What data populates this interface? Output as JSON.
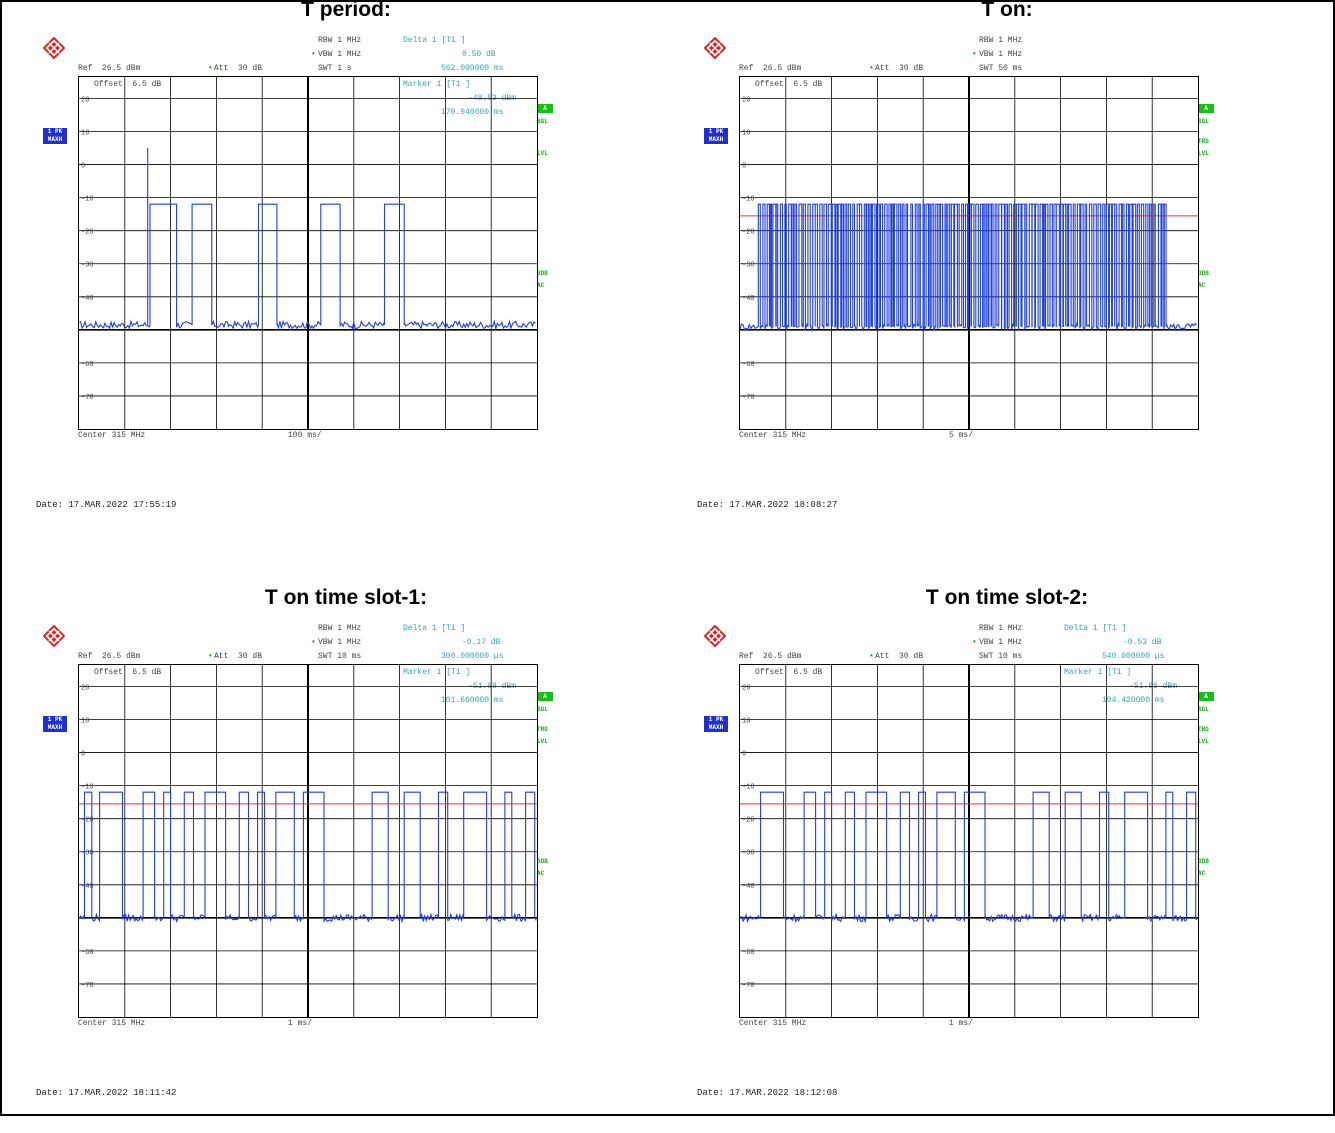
{
  "chart_data": [
    {
      "type": "line",
      "title": "T period:",
      "header": {
        "rbw": "RBW 1 MHz",
        "vbw": "VBW 1 MHz",
        "swt": "SWT 1 s",
        "ref": "Ref  26.5 dBm",
        "att": "Att  30 dB",
        "offset": "Offset  6.5 dB",
        "delta_label": "Delta 1 [T1 ]",
        "delta_db": "0.50 dB",
        "delta_time": "562.000000 ms",
        "marker_label": "Marker 1 [T1 ]",
        "marker_level": "-48.53 dBm",
        "marker_time": "170.940000 ms"
      },
      "side": {
        "tag1": "1 PK",
        "tag2": "MAXH",
        "sgl": "SGL",
        "trg": "",
        "lvl": "LVL",
        "db3": "3DB",
        "ac": "AC",
        "a": "A"
      },
      "trg_line": null,
      "center": "Center 315 MHz",
      "span": "100 ms/",
      "date": "Date: 17.MAR.2022  17:55:19",
      "xlim": [
        0,
        1000
      ],
      "ylim": [
        -80,
        26.5
      ],
      "ytick_labels": [
        "20",
        "10",
        "0",
        "-10",
        "-20",
        "-30",
        "-40",
        "-60",
        "-70"
      ],
      "yticks": [
        20,
        10,
        0,
        -10,
        -20,
        -30,
        -40,
        -60,
        -70
      ],
      "on_level": -12,
      "off_level": -48.5,
      "pulses": [
        [
          155,
          213
        ],
        [
          247,
          290
        ],
        [
          392,
          432
        ],
        [
          528,
          570
        ],
        [
          667,
          710
        ]
      ],
      "spikes": [
        [
          150,
          5
        ]
      ]
    },
    {
      "type": "line",
      "title": "T on:",
      "header": {
        "rbw": "RBW 1 MHz",
        "vbw": "VBW 1 MHz",
        "swt": "SWT 50 ms",
        "ref": "Ref  26.5 dBm",
        "att": "Att  30 dB",
        "offset": "Offset  6.5 dB",
        "delta_label": "",
        "delta_db": "",
        "delta_time": "",
        "marker_label": "",
        "marker_level": "",
        "marker_time": ""
      },
      "side": {
        "tag1": "1 PK",
        "tag2": "MAXH",
        "sgl": "SGL",
        "trg": "TRG",
        "lvl": "LVL",
        "db3": "3DB",
        "ac": "AC",
        "a": "A"
      },
      "trg_line": -15.5,
      "center": "Center 315 MHz",
      "span": "5 ms/",
      "date": "Date: 17.MAR.2022  18:08:27",
      "xlim": [
        0,
        50
      ],
      "ylim": [
        -80,
        26.5
      ],
      "ytick_labels": [
        "20",
        "10",
        "0",
        "-10",
        "-20",
        "-30",
        "-40",
        "-60",
        "-70"
      ],
      "yticks": [
        20,
        10,
        0,
        -10,
        -20,
        -30,
        -40,
        -60,
        -70
      ],
      "on_level": -12,
      "off_level": -49,
      "burst": [
        2.0,
        46.5,
        0.38
      ],
      "pulses": [],
      "spikes": []
    },
    {
      "type": "line",
      "title": "T on time slot-1:",
      "header": {
        "rbw": "RBW 1 MHz",
        "vbw": "VBW 1 MHz",
        "swt": "SWT 10 ms",
        "ref": "Ref  26.5 dBm",
        "att": "Att  30 dB",
        "offset": "Offset  6.5 dB",
        "delta_label": "Delta 1 [T1 ]",
        "delta_db": "-0.17 dB",
        "delta_time": "300.000000 µs",
        "marker_label": "Marker 1 [T1 ]",
        "marker_level": "-51.98 dBm",
        "marker_time": "101.660000 ms"
      },
      "side": {
        "tag1": "1 PK",
        "tag2": "MAXH",
        "sgl": "SGL",
        "trg": "TRG",
        "lvl": "LVL",
        "db3": "3DB",
        "ac": "AC",
        "a": "A"
      },
      "trg_line": -15.5,
      "center": "Center 315 MHz",
      "span": "1 ms/",
      "date": "Date: 17.MAR.2022  18:11:42",
      "xlim": [
        0,
        10
      ],
      "ylim": [
        -80,
        26.5
      ],
      "ytick_labels": [
        "20",
        "10",
        "0",
        "-10",
        "-20",
        "-30",
        "-40",
        "-60",
        "-70"
      ],
      "yticks": [
        20,
        10,
        0,
        -10,
        -20,
        -30,
        -40,
        -60,
        -70
      ],
      "on_level": -12,
      "off_level": -50,
      "pulses": [
        [
          0.12,
          0.28
        ],
        [
          0.45,
          0.95
        ],
        [
          1.4,
          1.65
        ],
        [
          1.85,
          2.0
        ],
        [
          2.3,
          2.5
        ],
        [
          2.75,
          3.2
        ],
        [
          3.5,
          3.7
        ],
        [
          3.9,
          4.05
        ],
        [
          4.3,
          4.7
        ],
        [
          4.9,
          5.35
        ],
        [
          6.4,
          6.75
        ],
        [
          7.1,
          7.45
        ],
        [
          7.85,
          8.05
        ],
        [
          8.4,
          8.9
        ],
        [
          9.3,
          9.45
        ],
        [
          9.75,
          9.95
        ]
      ],
      "spikes": []
    },
    {
      "type": "line",
      "title": "T on time slot-2:",
      "header": {
        "rbw": "RBW 1 MHz",
        "vbw": "VBW 1 MHz",
        "swt": "SWT 10 ms",
        "ref": "Ref  26.5 dBm",
        "att": "Att  30 dB",
        "offset": "Offset  6.5 dB",
        "delta_label": "Delta 1 [T1 ]",
        "delta_db": "-0.53 dB",
        "delta_time": "540.000000 µs",
        "marker_label": "Marker 1 [T1 ]",
        "marker_level": "-51.60 dBm",
        "marker_time": "104.420000 ms"
      },
      "side": {
        "tag1": "1 PK",
        "tag2": "MAXH",
        "sgl": "SGL",
        "trg": "TRG",
        "lvl": "LVL",
        "db3": "3DB",
        "ac": "AC",
        "a": "A"
      },
      "trg_line": -15.5,
      "center": "Center 315 MHz",
      "span": "1 ms/",
      "date": "Date: 17.MAR.2022  18:12:08",
      "xlim": [
        0,
        10
      ],
      "ylim": [
        -80,
        26.5
      ],
      "ytick_labels": [
        "20",
        "10",
        "0",
        "-10",
        "-20",
        "-30",
        "-40",
        "-60",
        "-70"
      ],
      "yticks": [
        20,
        10,
        0,
        -10,
        -20,
        -30,
        -40,
        -60,
        -70
      ],
      "on_level": -12,
      "off_level": -50,
      "pulses": [
        [
          0.45,
          0.95
        ],
        [
          1.4,
          1.65
        ],
        [
          1.85,
          2.0
        ],
        [
          2.3,
          2.5
        ],
        [
          2.75,
          3.2
        ],
        [
          3.5,
          3.7
        ],
        [
          3.9,
          4.05
        ],
        [
          4.3,
          4.7
        ],
        [
          4.9,
          5.35
        ],
        [
          6.4,
          6.75
        ],
        [
          7.1,
          7.45
        ],
        [
          7.85,
          8.05
        ],
        [
          8.4,
          8.9
        ],
        [
          9.3,
          9.45
        ],
        [
          9.75,
          9.95
        ]
      ],
      "spikes": []
    }
  ]
}
